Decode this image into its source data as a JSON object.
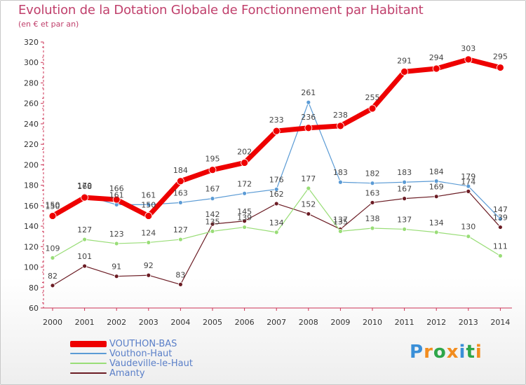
{
  "header": {
    "title": "Evolution de la Dotation Globale de Fonctionnement par Habitant",
    "subtitle": "(en € et par an)"
  },
  "logo": {
    "text": "Proxiti",
    "letters": [
      "P",
      "r",
      "o",
      "x",
      "i",
      "t",
      "i"
    ],
    "colors": [
      "#3a8fd8",
      "#f28c1e",
      "#2ea64a",
      "#f28c1e",
      "#3a8fd8",
      "#2ea64a",
      "#f28c1e"
    ]
  },
  "chart_data": {
    "type": "line",
    "x": [
      "2000",
      "2001",
      "2002",
      "2003",
      "2004",
      "2005",
      "2006",
      "2007",
      "2008",
      "2009",
      "2010",
      "2011",
      "2012",
      "2013",
      "2014"
    ],
    "ylim": [
      60,
      320
    ],
    "yticks": [
      60,
      80,
      100,
      120,
      140,
      160,
      180,
      200,
      220,
      240,
      260,
      280,
      300,
      320
    ],
    "grid": false,
    "legend_position": "bottom-left",
    "series": [
      {
        "name": "Amanty",
        "color": "#6b1c24",
        "values": [
          82,
          101,
          91,
          92,
          83,
          142,
          145,
          162,
          152,
          137,
          163,
          167,
          169,
          174,
          139
        ],
        "labels": [
          "82",
          "101",
          "91",
          "92",
          "83",
          "142",
          "145",
          "162",
          "152",
          "137",
          "163",
          "167",
          "169",
          "174",
          "139"
        ]
      },
      {
        "name": "Vaudeville-le-Haut",
        "color": "#99dd77",
        "values": [
          109,
          127,
          123,
          124,
          127,
          135,
          139,
          134,
          177,
          135,
          138,
          137,
          134,
          130,
          111
        ],
        "labels": [
          "109",
          "127",
          "123",
          "124",
          "127",
          "135",
          "139",
          "134",
          "177",
          "135",
          "138",
          "137",
          "134",
          "130",
          "111"
        ]
      },
      {
        "name": "Vouthon-Haut",
        "color": "#5b9bd5",
        "values": [
          150,
          170,
          161,
          161,
          163,
          167,
          172,
          176,
          261,
          183,
          182,
          183,
          184,
          179,
          147
        ],
        "labels": [
          "150",
          "170",
          "161",
          "161",
          "163",
          "167",
          "172",
          "176",
          "261",
          "183",
          "182",
          "183",
          "184",
          "179",
          "147"
        ]
      },
      {
        "name": "VOUTHON-BAS",
        "color": "#ee0000",
        "values": [
          150,
          168,
          166,
          150,
          184,
          195,
          202,
          233,
          236,
          238,
          255,
          291,
          294,
          303,
          295
        ],
        "labels": [
          "150",
          "168",
          "166",
          "150",
          "184",
          "195",
          "202",
          "233",
          "236",
          "238",
          "255",
          "291",
          "294",
          "303",
          "295"
        ]
      }
    ],
    "legend": [
      {
        "name": "VOUTHON-BAS",
        "color": "#ee0000"
      },
      {
        "name": "Vouthon-Haut",
        "color": "#5b9bd5"
      },
      {
        "name": "Vaudeville-le-Haut",
        "color": "#99dd77"
      },
      {
        "name": "Amanty",
        "color": "#6b1c24"
      }
    ]
  }
}
